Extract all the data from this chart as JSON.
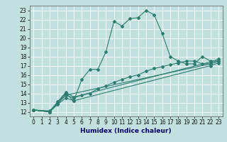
{
  "xlabel": "Humidex (Indice chaleur)",
  "xlim": [
    -0.5,
    23.5
  ],
  "ylim": [
    11.5,
    23.5
  ],
  "xticks": [
    0,
    1,
    2,
    3,
    4,
    5,
    6,
    7,
    8,
    9,
    10,
    11,
    12,
    13,
    14,
    15,
    16,
    17,
    18,
    19,
    20,
    21,
    22,
    23
  ],
  "yticks": [
    12,
    13,
    14,
    15,
    16,
    17,
    18,
    19,
    20,
    21,
    22,
    23
  ],
  "color": "#2e7d6e",
  "bg_color": "#c2e0e0",
  "grid_color": "#ffffff",
  "line1_x": [
    0,
    2,
    3,
    4,
    5,
    6,
    7,
    8,
    9,
    10,
    11,
    12,
    13,
    14,
    15,
    16,
    17,
    18,
    19,
    20,
    21,
    22,
    23
  ],
  "line1_y": [
    12.2,
    12.1,
    13.0,
    14.0,
    13.2,
    15.5,
    16.6,
    16.6,
    18.5,
    21.8,
    21.3,
    22.1,
    22.2,
    23.0,
    22.5,
    20.5,
    18.0,
    17.5,
    17.2,
    17.2,
    18.0,
    17.5,
    17.5
  ],
  "line2_x": [
    0,
    2,
    3,
    4,
    5,
    6,
    7,
    8,
    9,
    10,
    11,
    12,
    13,
    14,
    15,
    16,
    17,
    18,
    19,
    20,
    21,
    22,
    23
  ],
  "line2_y": [
    12.2,
    12.0,
    12.9,
    13.8,
    13.5,
    13.8,
    14.0,
    14.5,
    14.8,
    15.2,
    15.5,
    15.8,
    16.0,
    16.4,
    16.7,
    16.9,
    17.1,
    17.3,
    17.5,
    17.5,
    17.2,
    17.2,
    17.5
  ],
  "line3_x": [
    0,
    2,
    3,
    4,
    5,
    22,
    23
  ],
  "line3_y": [
    12.2,
    12.0,
    12.8,
    13.5,
    13.2,
    17.0,
    17.3
  ],
  "line4_x": [
    0,
    2,
    3,
    4,
    5,
    22,
    23
  ],
  "line4_y": [
    12.2,
    12.0,
    13.1,
    14.1,
    13.6,
    17.4,
    17.7
  ],
  "line5_x": [
    0,
    2,
    3,
    4,
    22,
    23
  ],
  "line5_y": [
    12.2,
    12.0,
    12.9,
    13.8,
    17.2,
    17.5
  ],
  "tick_fontsize": 5.5,
  "xlabel_fontsize": 6.5
}
